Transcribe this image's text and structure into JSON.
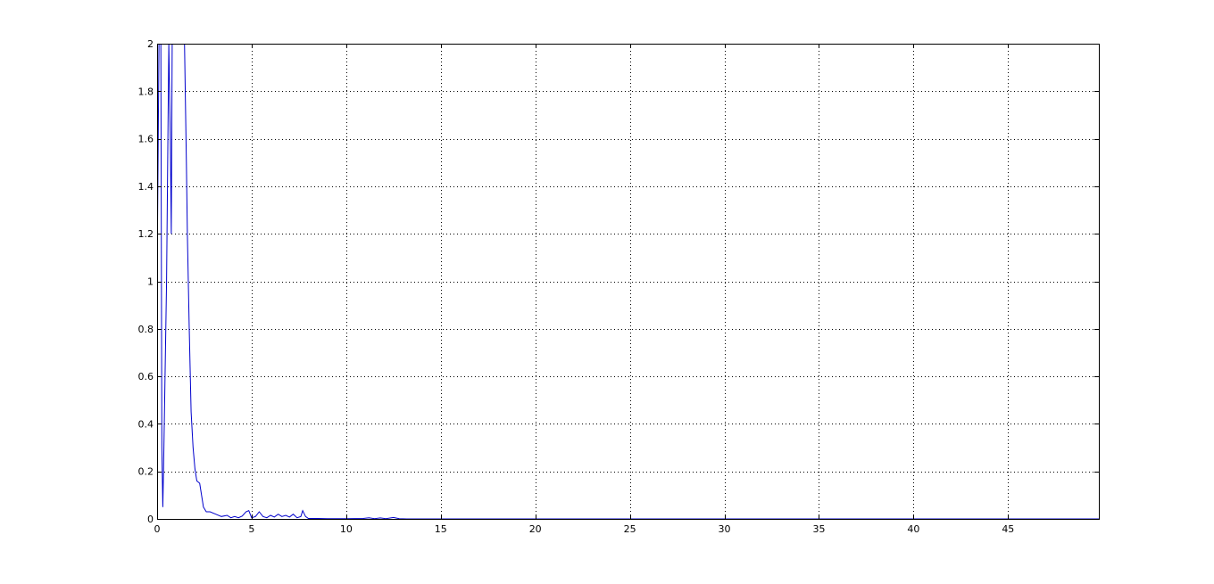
{
  "chart_data": {
    "type": "line",
    "title": "",
    "xlabel": "",
    "ylabel": "",
    "xlim": [
      0,
      49.8
    ],
    "ylim": [
      0,
      2
    ],
    "grid": true,
    "x_ticks": [
      0,
      5,
      10,
      15,
      20,
      25,
      30,
      35,
      40,
      45
    ],
    "x_tick_labels": [
      "0",
      "5",
      "10",
      "15",
      "20",
      "25",
      "30",
      "35",
      "40",
      "45"
    ],
    "y_ticks": [
      0,
      0.2,
      0.4,
      0.6,
      0.8,
      1,
      1.2,
      1.4,
      1.6,
      1.8,
      2
    ],
    "y_tick_labels": [
      "0",
      "0.2",
      "0.4",
      "0.6",
      "0.8",
      "1",
      "1.2",
      "1.4",
      "1.6",
      "1.8",
      "2"
    ],
    "series": [
      {
        "color": "#0000cc",
        "x": [
          0.0,
          0.1,
          0.2,
          0.25,
          0.3,
          0.35,
          0.5,
          0.62,
          0.7,
          0.75,
          0.8,
          0.95,
          1.1,
          1.35,
          1.45,
          1.55,
          1.6,
          1.7,
          1.8,
          1.9,
          2.0,
          2.1,
          2.25,
          2.35,
          2.45,
          2.6,
          2.8,
          3.1,
          3.4,
          3.7,
          3.9,
          4.1,
          4.3,
          4.5,
          4.7,
          4.85,
          5.0,
          5.2,
          5.4,
          5.6,
          5.8,
          6.0,
          6.2,
          6.4,
          6.6,
          6.8,
          7.0,
          7.2,
          7.4,
          7.6,
          7.7,
          7.85,
          8.0,
          8.5,
          9.0,
          10.0,
          10.9,
          11.2,
          11.5,
          11.8,
          12.1,
          12.5,
          12.8,
          13.2,
          15.0,
          20.0,
          25.0,
          30.0,
          35.0,
          40.0,
          45.0,
          49.8
        ],
        "y": [
          1.0,
          2.0,
          2.0,
          0.3,
          0.05,
          0.25,
          1.0,
          2.0,
          1.6,
          1.2,
          2.0,
          2.0,
          2.0,
          2.0,
          2.0,
          1.5,
          1.2,
          0.8,
          0.45,
          0.3,
          0.21,
          0.16,
          0.15,
          0.1,
          0.05,
          0.03,
          0.03,
          0.02,
          0.01,
          0.015,
          0.005,
          0.01,
          0.005,
          0.012,
          0.03,
          0.035,
          0.005,
          0.01,
          0.03,
          0.01,
          0.005,
          0.015,
          0.008,
          0.02,
          0.01,
          0.015,
          0.008,
          0.02,
          0.005,
          0.01,
          0.035,
          0.01,
          0.002,
          0.002,
          0.001,
          0.001,
          0.002,
          0.005,
          0.001,
          0.004,
          0.001,
          0.006,
          0.001,
          0.0,
          0.0,
          0.0,
          0.0,
          0.0,
          0.0,
          0.0,
          0.0,
          0.0
        ]
      }
    ]
  }
}
